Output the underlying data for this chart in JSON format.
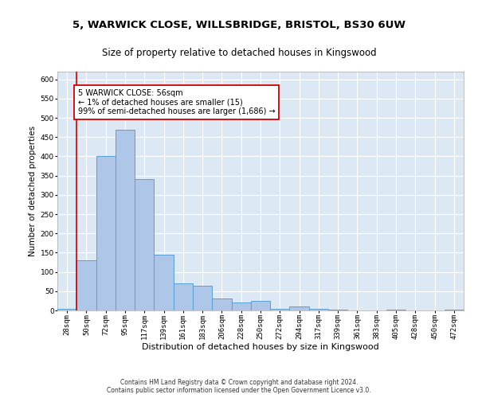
{
  "title_line1": "5, WARWICK CLOSE, WILLSBRIDGE, BRISTOL, BS30 6UW",
  "title_line2": "Size of property relative to detached houses in Kingswood",
  "xlabel": "Distribution of detached houses by size in Kingswood",
  "ylabel": "Number of detached properties",
  "footer_line1": "Contains HM Land Registry data © Crown copyright and database right 2024.",
  "footer_line2": "Contains public sector information licensed under the Open Government Licence v3.0.",
  "bar_labels": [
    "28sqm",
    "50sqm",
    "72sqm",
    "95sqm",
    "117sqm",
    "139sqm",
    "161sqm",
    "183sqm",
    "206sqm",
    "228sqm",
    "250sqm",
    "272sqm",
    "294sqm",
    "317sqm",
    "339sqm",
    "361sqm",
    "383sqm",
    "405sqm",
    "428sqm",
    "450sqm",
    "472sqm"
  ],
  "bar_values": [
    5,
    130,
    400,
    470,
    340,
    145,
    70,
    65,
    30,
    20,
    25,
    5,
    10,
    5,
    2,
    1,
    0,
    2,
    0,
    0,
    2
  ],
  "bar_color": "#aec6e8",
  "bar_edge_color": "#5a9fd4",
  "ylim": [
    0,
    620
  ],
  "yticks": [
    0,
    50,
    100,
    150,
    200,
    250,
    300,
    350,
    400,
    450,
    500,
    550,
    600
  ],
  "vline_color": "#cc0000",
  "annotation_text": "5 WARWICK CLOSE: 56sqm\n← 1% of detached houses are smaller (15)\n99% of semi-detached houses are larger (1,686) →",
  "annotation_box_color": "#ffffff",
  "annotation_box_edge_color": "#cc0000",
  "bg_color": "#ffffff",
  "plot_bg_color": "#dce9f5",
  "grid_color": "#ffffff",
  "title_fontsize": 9.5,
  "subtitle_fontsize": 8.5,
  "xlabel_fontsize": 8,
  "ylabel_fontsize": 7.5,
  "tick_fontsize": 6.5,
  "annotation_fontsize": 7,
  "footer_fontsize": 5.5
}
